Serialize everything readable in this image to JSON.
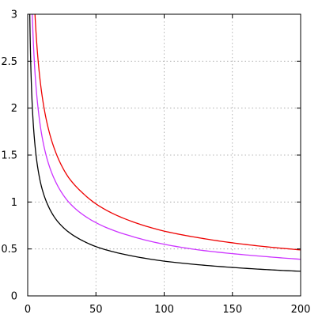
{
  "chart_data": {
    "type": "line",
    "title": "",
    "xlabel": "",
    "ylabel": "",
    "xlim": [
      0,
      200
    ],
    "ylim": [
      0,
      3
    ],
    "grid": true,
    "x_ticks": [
      0,
      50,
      100,
      150,
      200
    ],
    "x_tick_labels": [
      "0",
      "50",
      "100",
      "150",
      "200"
    ],
    "y_ticks": [
      0,
      0.5,
      1,
      1.5,
      2,
      2.5,
      3
    ],
    "y_tick_labels": [
      "0",
      "0.5",
      "1",
      "1.5",
      "2",
      "2.5",
      "3"
    ],
    "series": [
      {
        "color": "#000000",
        "x": [
          1,
          2,
          3,
          5,
          8,
          10,
          15,
          20,
          30,
          40,
          50,
          75,
          100,
          125,
          150,
          175,
          200
        ],
        "y": [
          3.7,
          2.62,
          2.14,
          1.66,
          1.31,
          1.17,
          0.96,
          0.83,
          0.68,
          0.59,
          0.525,
          0.43,
          0.37,
          0.332,
          0.303,
          0.28,
          0.262
        ]
      },
      {
        "color": "#cc33ff",
        "x": [
          2,
          3,
          5,
          8,
          10,
          15,
          20,
          30,
          40,
          50,
          75,
          100,
          125,
          150,
          175,
          200
        ],
        "y": [
          3.9,
          3.18,
          2.46,
          1.95,
          1.74,
          1.42,
          1.23,
          1.0,
          0.87,
          0.78,
          0.64,
          0.55,
          0.49,
          0.45,
          0.418,
          0.39
        ]
      },
      {
        "color": "#ee0000",
        "x": [
          3,
          5,
          8,
          10,
          15,
          20,
          30,
          40,
          50,
          75,
          100,
          125,
          150,
          175,
          200
        ],
        "y": [
          4.0,
          3.1,
          2.45,
          2.19,
          1.79,
          1.55,
          1.26,
          1.1,
          0.98,
          0.8,
          0.69,
          0.62,
          0.565,
          0.523,
          0.49
        ]
      }
    ]
  }
}
